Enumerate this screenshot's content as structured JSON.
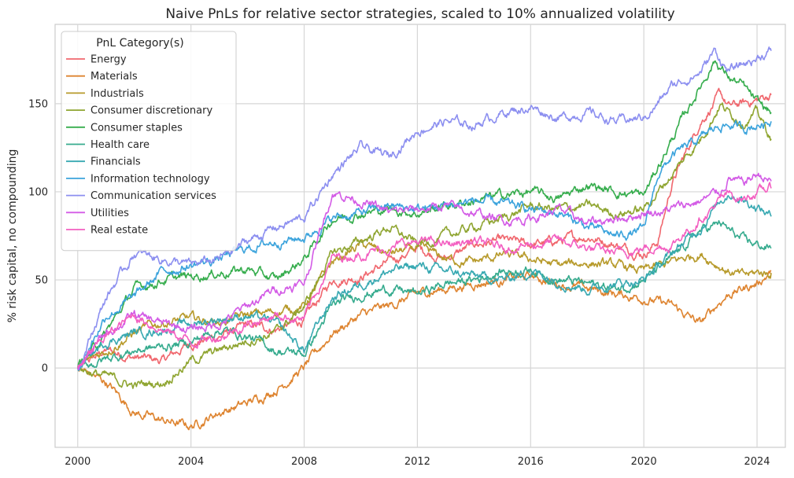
{
  "chart_data": {
    "type": "line",
    "title": "Naive PnLs for relative sector strategies, scaled to 10% annualized volatility",
    "xlabel": "",
    "ylabel": "% risk capital, no compounding",
    "xlim": [
      1999.2,
      2025.0
    ],
    "ylim": [
      -45,
      195
    ],
    "x_ticks": [
      2000,
      2004,
      2008,
      2012,
      2016,
      2020,
      2024
    ],
    "y_ticks": [
      0,
      50,
      100,
      150
    ],
    "grid": true,
    "legend": {
      "title": "PnL Category(s)",
      "placement": "top-left"
    },
    "series": [
      {
        "name": "Energy",
        "color": "#f0676e",
        "points": [
          [
            2000,
            0
          ],
          [
            2001,
            10
          ],
          [
            2002,
            6
          ],
          [
            2003,
            4
          ],
          [
            2004,
            14
          ],
          [
            2005,
            18
          ],
          [
            2006,
            24
          ],
          [
            2007,
            22
          ],
          [
            2008,
            27
          ],
          [
            2009,
            50
          ],
          [
            2010,
            52
          ],
          [
            2011,
            60
          ],
          [
            2012,
            68
          ],
          [
            2013,
            62
          ],
          [
            2014,
            70
          ],
          [
            2015,
            72
          ],
          [
            2016,
            70
          ],
          [
            2017,
            72
          ],
          [
            2018,
            75
          ],
          [
            2019,
            70
          ],
          [
            2020,
            65
          ],
          [
            2020.5,
            72
          ],
          [
            2021,
            105
          ],
          [
            2022,
            140
          ],
          [
            2022.7,
            155
          ],
          [
            2023,
            148
          ],
          [
            2023.5,
            150
          ],
          [
            2024,
            152
          ],
          [
            2024.5,
            155
          ]
        ]
      },
      {
        "name": "Materials",
        "color": "#de8430",
        "points": [
          [
            2000,
            0
          ],
          [
            2001,
            -8
          ],
          [
            2002,
            -25
          ],
          [
            2003,
            -30
          ],
          [
            2004,
            -33
          ],
          [
            2005,
            -25
          ],
          [
            2006,
            -20
          ],
          [
            2007,
            -12
          ],
          [
            2008,
            0
          ],
          [
            2009,
            20
          ],
          [
            2010,
            30
          ],
          [
            2011,
            35
          ],
          [
            2012,
            42
          ],
          [
            2013,
            45
          ],
          [
            2014,
            48
          ],
          [
            2015,
            50
          ],
          [
            2016,
            52
          ],
          [
            2017,
            48
          ],
          [
            2018,
            45
          ],
          [
            2019,
            42
          ],
          [
            2020,
            40
          ],
          [
            2021,
            35
          ],
          [
            2022,
            25
          ],
          [
            2022.7,
            38
          ],
          [
            2023,
            42
          ],
          [
            2023.5,
            45
          ],
          [
            2024,
            48
          ],
          [
            2024.5,
            55
          ]
        ]
      },
      {
        "name": "Industrials",
        "color": "#b79a2b",
        "points": [
          [
            2000,
            0
          ],
          [
            2001,
            10
          ],
          [
            2002,
            20
          ],
          [
            2003,
            26
          ],
          [
            2004,
            28
          ],
          [
            2005,
            26
          ],
          [
            2006,
            30
          ],
          [
            2007,
            32
          ],
          [
            2008,
            35
          ],
          [
            2009,
            60
          ],
          [
            2010,
            70
          ],
          [
            2011,
            65
          ],
          [
            2012,
            68
          ],
          [
            2013,
            62
          ],
          [
            2014,
            60
          ],
          [
            2015,
            64
          ],
          [
            2016,
            62
          ],
          [
            2017,
            58
          ],
          [
            2018,
            60
          ],
          [
            2019,
            58
          ],
          [
            2020,
            55
          ],
          [
            2021,
            60
          ],
          [
            2022,
            65
          ],
          [
            2022.7,
            58
          ],
          [
            2023,
            55
          ],
          [
            2023.5,
            52
          ],
          [
            2024,
            54
          ],
          [
            2024.5,
            54
          ]
        ]
      },
      {
        "name": "Consumer discretionary",
        "color": "#8fa531",
        "points": [
          [
            2000,
            0
          ],
          [
            2001,
            -5
          ],
          [
            2002,
            -10
          ],
          [
            2003,
            -8
          ],
          [
            2004,
            4
          ],
          [
            2005,
            10
          ],
          [
            2006,
            16
          ],
          [
            2007,
            20
          ],
          [
            2008,
            35
          ],
          [
            2009,
            65
          ],
          [
            2010,
            72
          ],
          [
            2011,
            80
          ],
          [
            2012,
            70
          ],
          [
            2013,
            75
          ],
          [
            2014,
            80
          ],
          [
            2015,
            85
          ],
          [
            2016,
            92
          ],
          [
            2017,
            90
          ],
          [
            2018,
            92
          ],
          [
            2019,
            88
          ],
          [
            2020,
            90
          ],
          [
            2021,
            110
          ],
          [
            2022,
            130
          ],
          [
            2022.7,
            150
          ],
          [
            2023,
            145
          ],
          [
            2023.5,
            140
          ],
          [
            2024,
            145
          ],
          [
            2024.5,
            130
          ]
        ]
      },
      {
        "name": "Consumer staples",
        "color": "#36ad4d",
        "points": [
          [
            2000,
            0
          ],
          [
            2001,
            20
          ],
          [
            2002,
            45
          ],
          [
            2003,
            50
          ],
          [
            2004,
            52
          ],
          [
            2005,
            54
          ],
          [
            2006,
            56
          ],
          [
            2007,
            50
          ],
          [
            2008,
            62
          ],
          [
            2009,
            85
          ],
          [
            2010,
            88
          ],
          [
            2011,
            90
          ],
          [
            2012,
            88
          ],
          [
            2013,
            92
          ],
          [
            2014,
            95
          ],
          [
            2015,
            98
          ],
          [
            2016,
            100
          ],
          [
            2017,
            96
          ],
          [
            2018,
            104
          ],
          [
            2019,
            100
          ],
          [
            2020,
            98
          ],
          [
            2021,
            130
          ],
          [
            2022,
            160
          ],
          [
            2022.5,
            175
          ],
          [
            2023,
            165
          ],
          [
            2023.5,
            160
          ],
          [
            2024,
            150
          ],
          [
            2024.5,
            145
          ]
        ]
      },
      {
        "name": "Health care",
        "color": "#36ab8e",
        "points": [
          [
            2000,
            0
          ],
          [
            2001,
            5
          ],
          [
            2002,
            10
          ],
          [
            2003,
            12
          ],
          [
            2004,
            15
          ],
          [
            2005,
            22
          ],
          [
            2006,
            18
          ],
          [
            2007,
            10
          ],
          [
            2008,
            8
          ],
          [
            2009,
            35
          ],
          [
            2010,
            42
          ],
          [
            2011,
            45
          ],
          [
            2012,
            42
          ],
          [
            2013,
            48
          ],
          [
            2014,
            50
          ],
          [
            2015,
            55
          ],
          [
            2016,
            56
          ],
          [
            2017,
            50
          ],
          [
            2018,
            48
          ],
          [
            2019,
            45
          ],
          [
            2020,
            50
          ],
          [
            2021,
            62
          ],
          [
            2022,
            78
          ],
          [
            2022.7,
            82
          ],
          [
            2023,
            78
          ],
          [
            2023.5,
            72
          ],
          [
            2024,
            70
          ],
          [
            2024.5,
            68
          ]
        ]
      },
      {
        "name": "Financials",
        "color": "#38a9b2",
        "points": [
          [
            2000,
            0
          ],
          [
            2001,
            15
          ],
          [
            2002,
            20
          ],
          [
            2003,
            22
          ],
          [
            2004,
            25
          ],
          [
            2005,
            28
          ],
          [
            2006,
            30
          ],
          [
            2007,
            25
          ],
          [
            2008,
            10
          ],
          [
            2009,
            40
          ],
          [
            2010,
            48
          ],
          [
            2011,
            55
          ],
          [
            2012,
            58
          ],
          [
            2013,
            55
          ],
          [
            2014,
            52
          ],
          [
            2015,
            50
          ],
          [
            2016,
            55
          ],
          [
            2017,
            50
          ],
          [
            2018,
            45
          ],
          [
            2019,
            48
          ],
          [
            2020,
            50
          ],
          [
            2021,
            65
          ],
          [
            2022,
            80
          ],
          [
            2022.7,
            95
          ],
          [
            2023,
            100
          ],
          [
            2023.5,
            96
          ],
          [
            2024,
            92
          ],
          [
            2024.5,
            86
          ]
        ]
      },
      {
        "name": "Information technology",
        "color": "#3ba3dc",
        "points": [
          [
            2000,
            0
          ],
          [
            2001,
            30
          ],
          [
            2002,
            40
          ],
          [
            2003,
            55
          ],
          [
            2004,
            58
          ],
          [
            2005,
            62
          ],
          [
            2006,
            68
          ],
          [
            2007,
            72
          ],
          [
            2008,
            74
          ],
          [
            2009,
            85
          ],
          [
            2010,
            88
          ],
          [
            2011,
            92
          ],
          [
            2012,
            90
          ],
          [
            2013,
            92
          ],
          [
            2014,
            95
          ],
          [
            2015,
            93
          ],
          [
            2016,
            90
          ],
          [
            2017,
            88
          ],
          [
            2018,
            80
          ],
          [
            2019,
            75
          ],
          [
            2020,
            78
          ],
          [
            2020.5,
            110
          ],
          [
            2021,
            120
          ],
          [
            2022,
            130
          ],
          [
            2022.7,
            138
          ],
          [
            2023,
            138
          ],
          [
            2023.5,
            136
          ],
          [
            2024,
            138
          ],
          [
            2024.5,
            140
          ]
        ]
      },
      {
        "name": "Communication services",
        "color": "#8c8ff0",
        "points": [
          [
            2000,
            0
          ],
          [
            2001,
            40
          ],
          [
            2002,
            65
          ],
          [
            2003,
            62
          ],
          [
            2004,
            58
          ],
          [
            2005,
            62
          ],
          [
            2006,
            72
          ],
          [
            2007,
            80
          ],
          [
            2008,
            85
          ],
          [
            2009,
            110
          ],
          [
            2010,
            125
          ],
          [
            2011,
            120
          ],
          [
            2012,
            135
          ],
          [
            2013,
            140
          ],
          [
            2014,
            138
          ],
          [
            2015,
            145
          ],
          [
            2016,
            148
          ],
          [
            2017,
            142
          ],
          [
            2018,
            145
          ],
          [
            2019,
            140
          ],
          [
            2020,
            142
          ],
          [
            2020.5,
            150
          ],
          [
            2021,
            160
          ],
          [
            2022,
            168
          ],
          [
            2022.5,
            180
          ],
          [
            2023,
            168
          ],
          [
            2023.5,
            172
          ],
          [
            2024,
            176
          ],
          [
            2024.5,
            180
          ]
        ]
      },
      {
        "name": "Utilities",
        "color": "#d35be6",
        "points": [
          [
            2000,
            0
          ],
          [
            2001,
            20
          ],
          [
            2002,
            30
          ],
          [
            2003,
            25
          ],
          [
            2004,
            22
          ],
          [
            2005,
            25
          ],
          [
            2006,
            35
          ],
          [
            2007,
            45
          ],
          [
            2008,
            48
          ],
          [
            2009,
            100
          ],
          [
            2010,
            95
          ],
          [
            2011,
            88
          ],
          [
            2012,
            90
          ],
          [
            2013,
            92
          ],
          [
            2014,
            88
          ],
          [
            2015,
            84
          ],
          [
            2016,
            85
          ],
          [
            2017,
            90
          ],
          [
            2018,
            82
          ],
          [
            2019,
            85
          ],
          [
            2020,
            88
          ],
          [
            2021,
            90
          ],
          [
            2022,
            95
          ],
          [
            2022.7,
            100
          ],
          [
            2023,
            108
          ],
          [
            2023.5,
            104
          ],
          [
            2024,
            110
          ],
          [
            2024.5,
            106
          ]
        ]
      },
      {
        "name": "Real estate",
        "color": "#f35fc1",
        "points": [
          [
            2000,
            0
          ],
          [
            2001,
            18
          ],
          [
            2002,
            30
          ],
          [
            2003,
            22
          ],
          [
            2004,
            15
          ],
          [
            2005,
            18
          ],
          [
            2006,
            25
          ],
          [
            2007,
            30
          ],
          [
            2008,
            28
          ],
          [
            2009,
            62
          ],
          [
            2010,
            65
          ],
          [
            2011,
            68
          ],
          [
            2012,
            72
          ],
          [
            2013,
            70
          ],
          [
            2014,
            72
          ],
          [
            2015,
            68
          ],
          [
            2016,
            70
          ],
          [
            2017,
            72
          ],
          [
            2018,
            68
          ],
          [
            2019,
            65
          ],
          [
            2020,
            68
          ],
          [
            2021,
            70
          ],
          [
            2022,
            85
          ],
          [
            2022.7,
            95
          ],
          [
            2023,
            98
          ],
          [
            2023.5,
            96
          ],
          [
            2024,
            100
          ],
          [
            2024.5,
            102
          ]
        ]
      }
    ]
  }
}
